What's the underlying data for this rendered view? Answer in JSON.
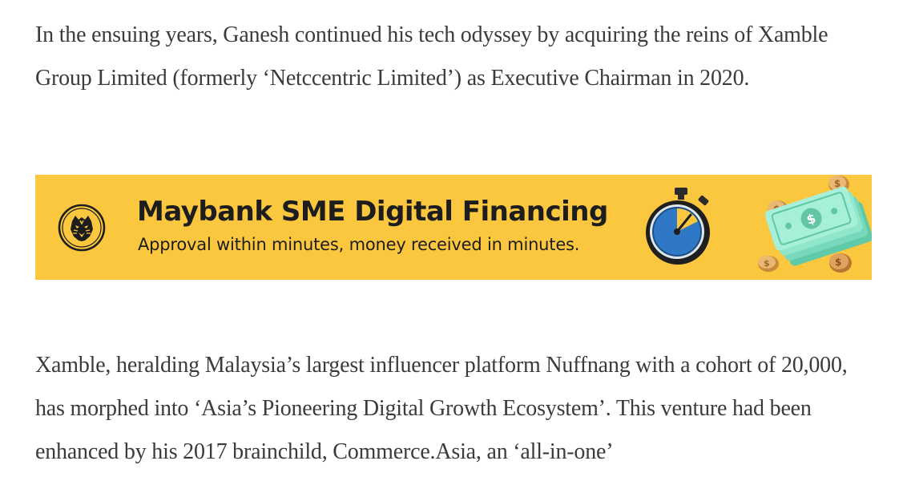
{
  "article": {
    "paragraph_1": "In the ensuing years, Ganesh continued his tech odyssey by acquiring the reins of Xamble Group Limited (formerly ‘Netccentric Limited’) as Executive Chairman in 2020.",
    "paragraph_2": "Xamble, heralding Malaysia’s largest influencer platform Nuffnang with a cohort of 20,000, has morphed into ‘Asia’s Pioneering Digital Growth Ecosystem’. This venture had been enhanced by his 2017 brainchild, Commerce.Asia, an ‘all-in-one’"
  },
  "ad": {
    "title": "Maybank SME Digital Financing",
    "subtitle": "Approval within minutes, money received in minutes.",
    "background_color": "#fbc73e",
    "logo_icon": "maybank-tiger-logo-icon",
    "stopwatch_icon": "stopwatch-icon",
    "money_icon": "banknotes-coins-icon"
  }
}
